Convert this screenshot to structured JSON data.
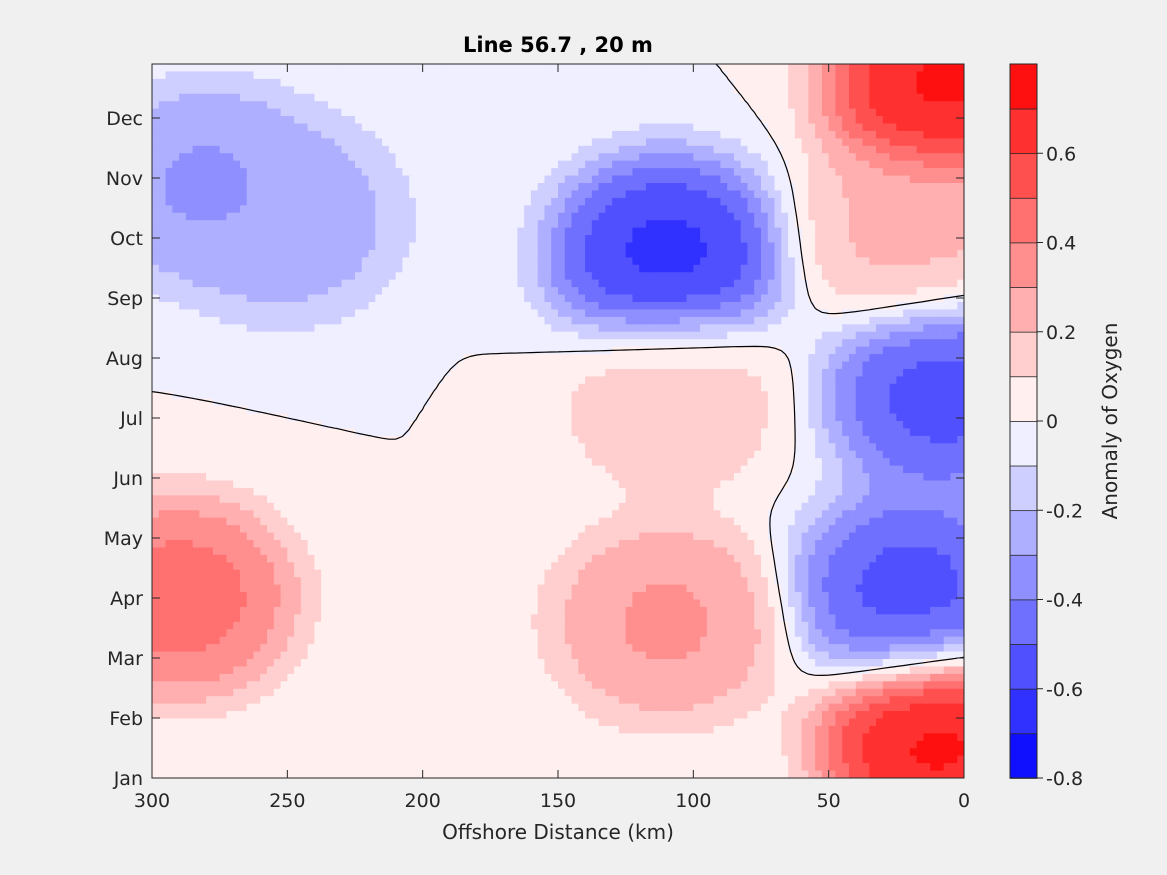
{
  "chart_data": {
    "type": "heatmap",
    "title": "Line 56.7 , 20 m",
    "xlabel": "Offshore Distance (km)",
    "ylabel": "",
    "xlim": [
      300,
      0
    ],
    "x_reversed": true,
    "x_ticks": [
      300,
      250,
      200,
      150,
      100,
      50,
      0
    ],
    "y_ticks": [
      "Jan",
      "Feb",
      "Mar",
      "Apr",
      "May",
      "Jun",
      "Jul",
      "Aug",
      "Sep",
      "Oct",
      "Nov",
      "Dec"
    ],
    "colorbar": {
      "label": "Anomaly of Oxygen",
      "range": [
        -0.8,
        0.8
      ],
      "step": 0.1,
      "tick_values": [
        -0.8,
        -0.6,
        -0.4,
        -0.2,
        0,
        0.2,
        0.4,
        0.6
      ],
      "tick_labels": [
        "-0.8",
        "-0.6",
        "-0.4",
        "-0.2",
        "0",
        "0.2",
        "0.4",
        "0.6"
      ],
      "color_low": "#0000ff",
      "color_mid": "#ffffff",
      "color_high": "#ff0000"
    },
    "contour_line_level": 0,
    "features": [
      {
        "x": 10,
        "month": 0.6,
        "value": 0.8
      },
      {
        "x": 8,
        "month": 11.5,
        "value": 0.8
      },
      {
        "x": 290,
        "month": 3.0,
        "value": 0.5
      },
      {
        "x": 110,
        "month": 2.6,
        "value": 0.35
      },
      {
        "x": 20,
        "month": 9.1,
        "value": 0.25
      },
      {
        "x": 108,
        "month": 6.3,
        "value": 0.18
      },
      {
        "x": 110,
        "month": 8.7,
        "value": -0.7
      },
      {
        "x": 8,
        "month": 6.4,
        "value": -0.6
      },
      {
        "x": 20,
        "month": 3.1,
        "value": -0.6
      },
      {
        "x": 280,
        "month": 9.9,
        "value": -0.35
      },
      {
        "x": 250,
        "month": 9.3,
        "value": -0.3
      }
    ]
  }
}
